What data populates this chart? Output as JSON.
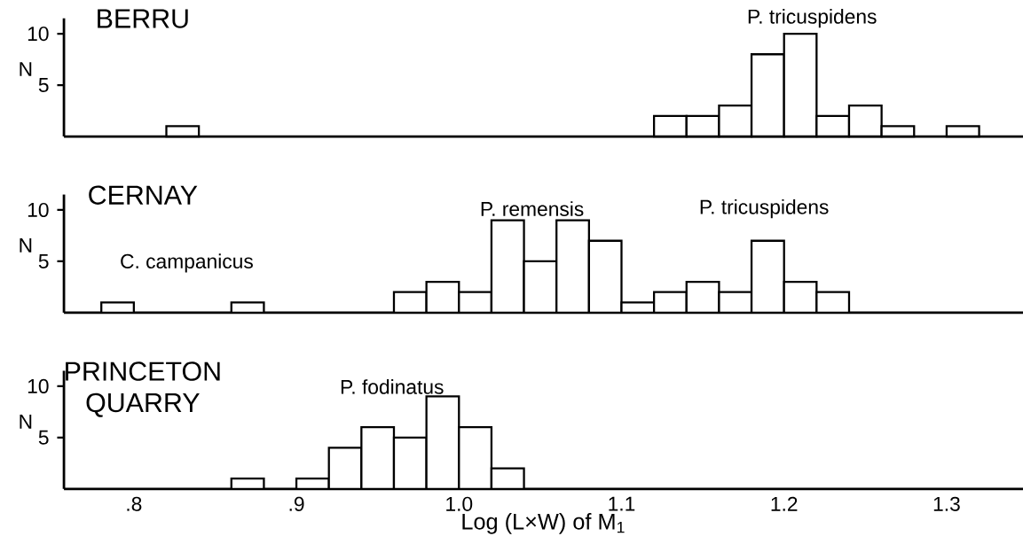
{
  "chart_data": [
    {
      "type": "histogram",
      "title": "BERRU",
      "ylabel": "N",
      "color": "#ffffff",
      "bins": [
        0.82,
        0.84,
        0.86,
        0.88,
        0.9,
        0.92,
        0.94,
        0.96,
        0.98,
        1.0,
        1.02,
        1.04,
        1.06,
        1.08,
        1.1,
        1.12,
        1.14,
        1.16,
        1.18,
        1.2,
        1.22,
        1.24,
        1.26,
        1.28,
        1.3,
        1.32
      ],
      "values": [
        1,
        0,
        0,
        0,
        0,
        0,
        0,
        0,
        0,
        0,
        0,
        0,
        0,
        0,
        0,
        2,
        2,
        3,
        8,
        10,
        2,
        3,
        1,
        0,
        1
      ],
      "xlim": [
        0.757,
        1.347
      ],
      "ylim": [
        0,
        11.5
      ],
      "yticks": [
        5,
        10
      ],
      "tick_labels": "y",
      "annotations": [
        "P. tricuspidens"
      ]
    },
    {
      "type": "histogram",
      "title": "CERNAY",
      "ylabel": "N",
      "color": "#ffffff",
      "bins": [
        0.78,
        0.8,
        0.82,
        0.84,
        0.86,
        0.88,
        0.9,
        0.92,
        0.94,
        0.96,
        0.98,
        1.0,
        1.02,
        1.04,
        1.06,
        1.08,
        1.1,
        1.12,
        1.14,
        1.16,
        1.18,
        1.2,
        1.22,
        1.24
      ],
      "values": [
        1,
        0,
        0,
        0,
        1,
        0,
        0,
        0,
        0,
        2,
        3,
        2,
        9,
        5,
        9,
        7,
        1,
        2,
        3,
        2,
        7,
        3,
        2
      ],
      "xlim": [
        0.757,
        1.347
      ],
      "ylim": [
        0,
        11.5
      ],
      "yticks": [
        5,
        10
      ],
      "tick_labels": "y",
      "annotations": [
        "C. campanicus",
        "P. remensis",
        "P. tricuspidens"
      ]
    },
    {
      "type": "histogram",
      "title": "PRINCETON QUARRY",
      "ylabel": "N",
      "xlabel": "Log (L×W) of M$_{1}$",
      "color": "#ffffff",
      "bins": [
        0.86,
        0.88,
        0.9,
        0.92,
        0.94,
        0.96,
        0.98,
        1.0,
        1.02,
        1.04
      ],
      "values": [
        1,
        0,
        1,
        4,
        6,
        5,
        9,
        6,
        2
      ],
      "xlim": [
        0.757,
        1.347
      ],
      "ylim": [
        0,
        11.5
      ],
      "xticks": [
        {
          "value": 0.8,
          "label": ".8"
        },
        {
          "value": 0.9,
          "label": ".9"
        },
        {
          "value": 1.0,
          "label": "1.0"
        },
        {
          "value": 1.1,
          "label": "1.1"
        },
        {
          "value": 1.2,
          "label": "1.2"
        },
        {
          "value": 1.3,
          "label": "1.3"
        }
      ],
      "yticks": [
        5,
        10
      ],
      "annotations": [
        "P. fodinatus"
      ]
    }
  ]
}
